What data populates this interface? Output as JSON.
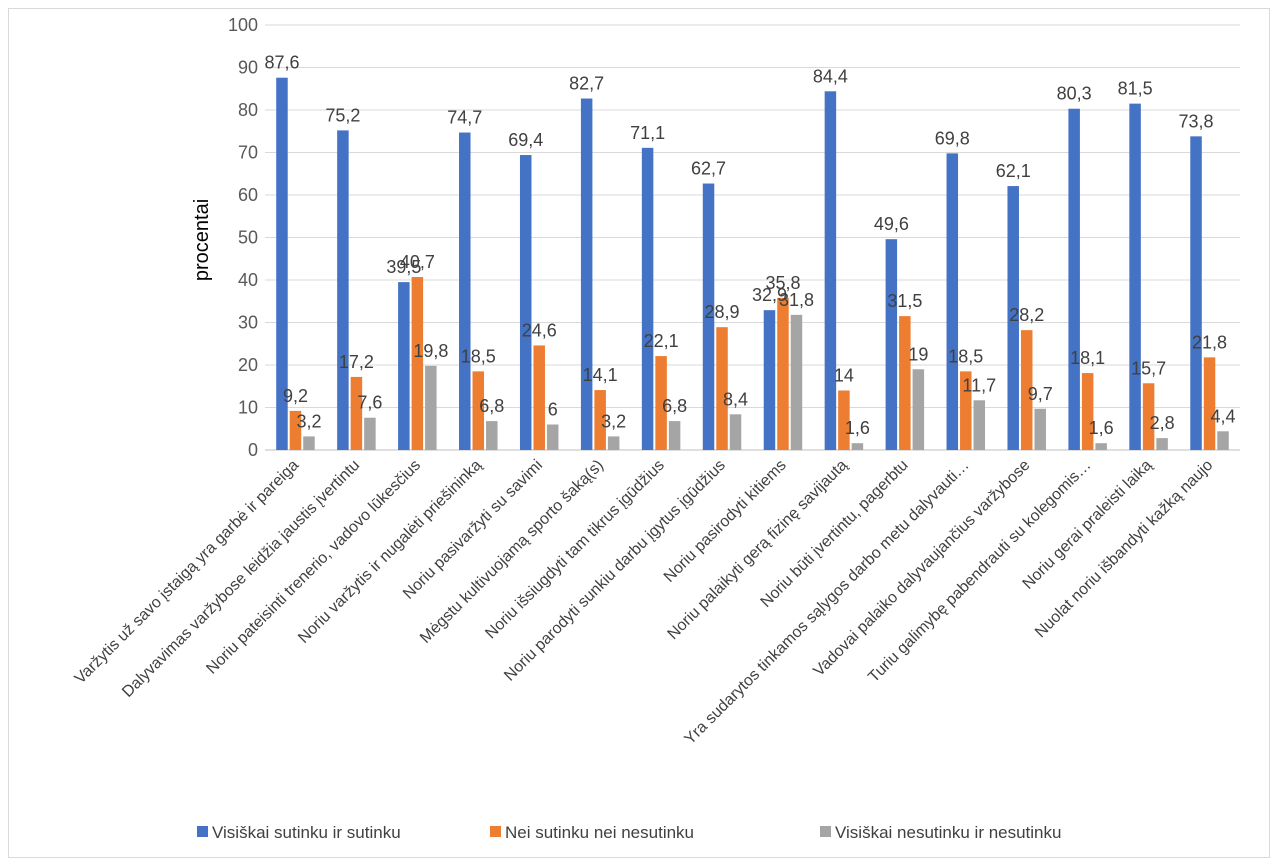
{
  "chart_data": {
    "type": "bar",
    "ylabel": "procentai",
    "ylim": [
      0,
      100
    ],
    "yticks": [
      0,
      10,
      20,
      30,
      40,
      50,
      60,
      70,
      80,
      90,
      100
    ],
    "grid": true,
    "legend_position": "bottom",
    "categories": [
      "Varžytis už savo įstaigą yra garbė ir pareiga",
      "Dalyvavimas varžybose leidžia jaustis įvertintu",
      "Noriu pateisinti trenerio, vadovo lūkesčius",
      "Noriu varžytis ir nugalėti priešininką",
      "Noriu pasivaržyti su savimi",
      "Mėgstu kultivuojamą sporto šaką(s)",
      "Noriu išsiugdyti tam tikrus įgūdžius",
      "Noriu parodyti sunkiu darbu įgytus įgūdžius",
      "Noriu pasirodyti kitiems",
      "Noriu palaikyti gerą fizinę savijautą",
      "Noriu būti įvertintu, pagerbtu",
      "Yra sudarytos tinkamos sąlygos darbo metu dalyvauti…",
      "Vadovai palaiko dalyvaujančius varžybose",
      "Turiu galimybę pabendrauti su kolegomis…",
      "Noriu gerai praleisti laiką",
      "Nuolat noriu išbandyti kažką naujo"
    ],
    "series": [
      {
        "name": "Visiškai sutinku ir sutinku",
        "color": "#4472C4",
        "values": [
          87.6,
          75.2,
          39.5,
          74.7,
          69.4,
          82.7,
          71.1,
          62.7,
          32.9,
          84.4,
          49.6,
          69.8,
          62.1,
          80.3,
          81.5,
          73.8
        ],
        "labels": [
          "87,6",
          "75,2",
          "39,5",
          "74,7",
          "69,4",
          "82,7",
          "71,1",
          "62,7",
          "32,9",
          "84,4",
          "49,6",
          "69,8",
          "62,1",
          "80,3",
          "81,5",
          "73,8"
        ]
      },
      {
        "name": "Nei sutinku nei nesutinku",
        "color": "#ED7D31",
        "values": [
          9.2,
          17.2,
          40.7,
          18.5,
          24.6,
          14.1,
          22.1,
          28.9,
          35.8,
          14,
          31.5,
          18.5,
          28.2,
          18.1,
          15.7,
          21.8
        ],
        "labels": [
          "9,2",
          "17,2",
          "40,7",
          "18,5",
          "24,6",
          "14,1",
          "22,1",
          "28,9",
          "35,8",
          "14",
          "31,5",
          "18,5",
          "28,2",
          "18,1",
          "15,7",
          "21,8"
        ]
      },
      {
        "name": "Visiškai nesutinku ir nesutinku",
        "color": "#A5A5A5",
        "values": [
          3.2,
          7.6,
          19.8,
          6.8,
          6,
          3.2,
          6.8,
          8.4,
          31.8,
          1.6,
          19,
          11.7,
          9.7,
          1.6,
          2.8,
          4.4
        ],
        "labels": [
          "3,2",
          "7,6",
          "19,8",
          "6,8",
          "6",
          "3,2",
          "6,8",
          "8,4",
          "31,8",
          "1,6",
          "19",
          "11,7",
          "9,7",
          "1,6",
          "2,8",
          "4,4"
        ]
      }
    ]
  }
}
